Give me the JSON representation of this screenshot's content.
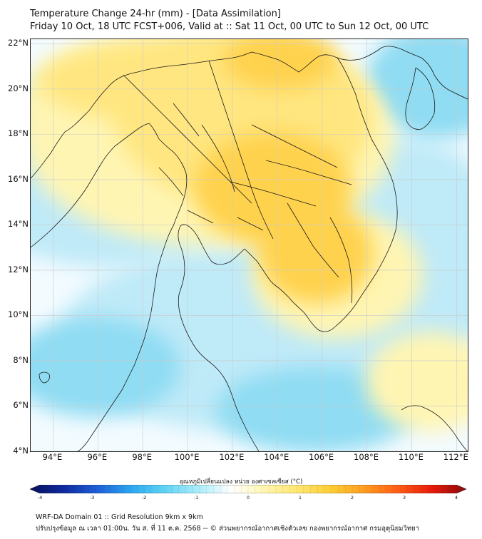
{
  "title_line1": "Temperature Change 24-hr (mm) - [Data Assimilation]",
  "title_line2": "Friday 10 Oct, 18 UTC FCST+006, Valid at :: Sat 11 Oct, 00 UTC to Sun 12 Oct, 00 UTC",
  "lat_labels": [
    "22°N",
    "20°N",
    "18°N",
    "16°N",
    "14°N",
    "12°N",
    "10°N",
    "8°N",
    "6°N",
    "4°N"
  ],
  "lon_labels": [
    "94°E",
    "96°E",
    "98°E",
    "100°E",
    "102°E",
    "104°E",
    "106°E",
    "108°E",
    "110°E",
    "112°E"
  ],
  "lat_values": [
    22,
    20,
    18,
    16,
    14,
    12,
    10,
    8,
    6,
    4
  ],
  "lon_values": [
    94,
    96,
    98,
    100,
    102,
    104,
    106,
    108,
    110,
    112
  ],
  "colorbar": {
    "title": "อุณหภูมิเปลี่ยนแปลง หน่วย องศาเซลเซียส (°C)",
    "ticks": [
      "-4",
      "-3",
      "-2",
      "-1",
      "0",
      "1",
      "2",
      "3",
      "4"
    ],
    "tick_values": [
      -4,
      -3,
      -2,
      -1,
      0,
      1,
      2,
      3,
      4
    ],
    "colors": [
      "#08105a",
      "#0f2a9e",
      "#1e5fd6",
      "#2ba6f0",
      "#5fd3f5",
      "#a9ecfa",
      "#ffffff",
      "#fff6b0",
      "#ffe66e",
      "#ffcc33",
      "#ff9a22",
      "#ff5a14",
      "#e51a0a",
      "#8a0a0a"
    ]
  },
  "field_colors": {
    "ocean_cool": "#bfeaf8",
    "ocean_cooler": "#8fdcf3",
    "neutral": "#f3fbff",
    "warm_light": "#fff5b3",
    "warm": "#ffe680",
    "warmer": "#ffd24d"
  },
  "footer_line1": "WRF-DA Domain 01 :: Grid Resolution 9km x 9km",
  "footer_line2": "ปรับปรุงข้อมูล ณ เวลา 01:00น. วัน ส. ที่ 11 ต.ค. 2568 -- © ส่วนพยากรณ์อากาศเชิงตัวเลข กองพยากรณ์อากาศ กรมอุตุนิยมวิทยา"
}
